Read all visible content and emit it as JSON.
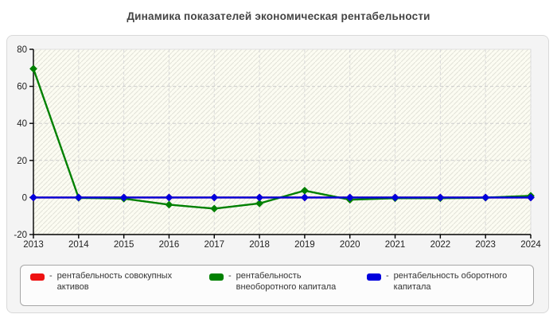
{
  "title": "Динамика показателей экономическая рентабельности",
  "colors": {
    "red": "#ee1111",
    "green": "#008000",
    "blue": "#0000dd",
    "card_bg": "#f4f4f4",
    "card_border": "#d9d9d9",
    "plot_bg": "#fcfcf2",
    "hatch_line": "#e2e2d8",
    "grid": "#cccccc",
    "axis": "#000000",
    "tick_text": "#222222",
    "title_text": "#444444",
    "legend_bg": "#fcfcfc",
    "legend_border": "#a6a6a6",
    "legend_text": "#333333"
  },
  "legend": {
    "separator": "-",
    "items": [
      {
        "label": "рентабельность совокупных активов",
        "color_key": "red"
      },
      {
        "label": "рентабельность внеоборотного капитала",
        "color_key": "green"
      },
      {
        "label": "рентабельность оборотного капитала",
        "color_key": "blue"
      }
    ]
  },
  "chart_data": {
    "type": "line",
    "x": [
      "2013",
      "2014",
      "2015",
      "2016",
      "2017",
      "2018",
      "2019",
      "2020",
      "2021",
      "2022",
      "2023",
      "2024"
    ],
    "series": [
      {
        "name": "рентабельность совокупных активов",
        "color_key": "red",
        "values": [
          0,
          0,
          0,
          0,
          0,
          0,
          0,
          0,
          0,
          0,
          0,
          0
        ]
      },
      {
        "name": "рентабельность внеоборотного капитала",
        "color_key": "green",
        "values": [
          69.5,
          -0.2,
          -0.6,
          -3.9,
          -6.0,
          -3.2,
          3.7,
          -1.2,
          -0.4,
          -0.4,
          -0.1,
          0.9
        ]
      },
      {
        "name": "рентабельность оборотного капитала",
        "color_key": "blue",
        "values": [
          0,
          0,
          0,
          0,
          0,
          0,
          0,
          0,
          0,
          0,
          0,
          0
        ]
      }
    ],
    "ylim": [
      -20,
      80
    ],
    "yticks": [
      80,
      60,
      40,
      20,
      0,
      -20
    ],
    "grid": true,
    "legend_position": "bottom",
    "title": "Динамика показателей экономическая рентабельности",
    "xlabel": "",
    "ylabel": ""
  }
}
